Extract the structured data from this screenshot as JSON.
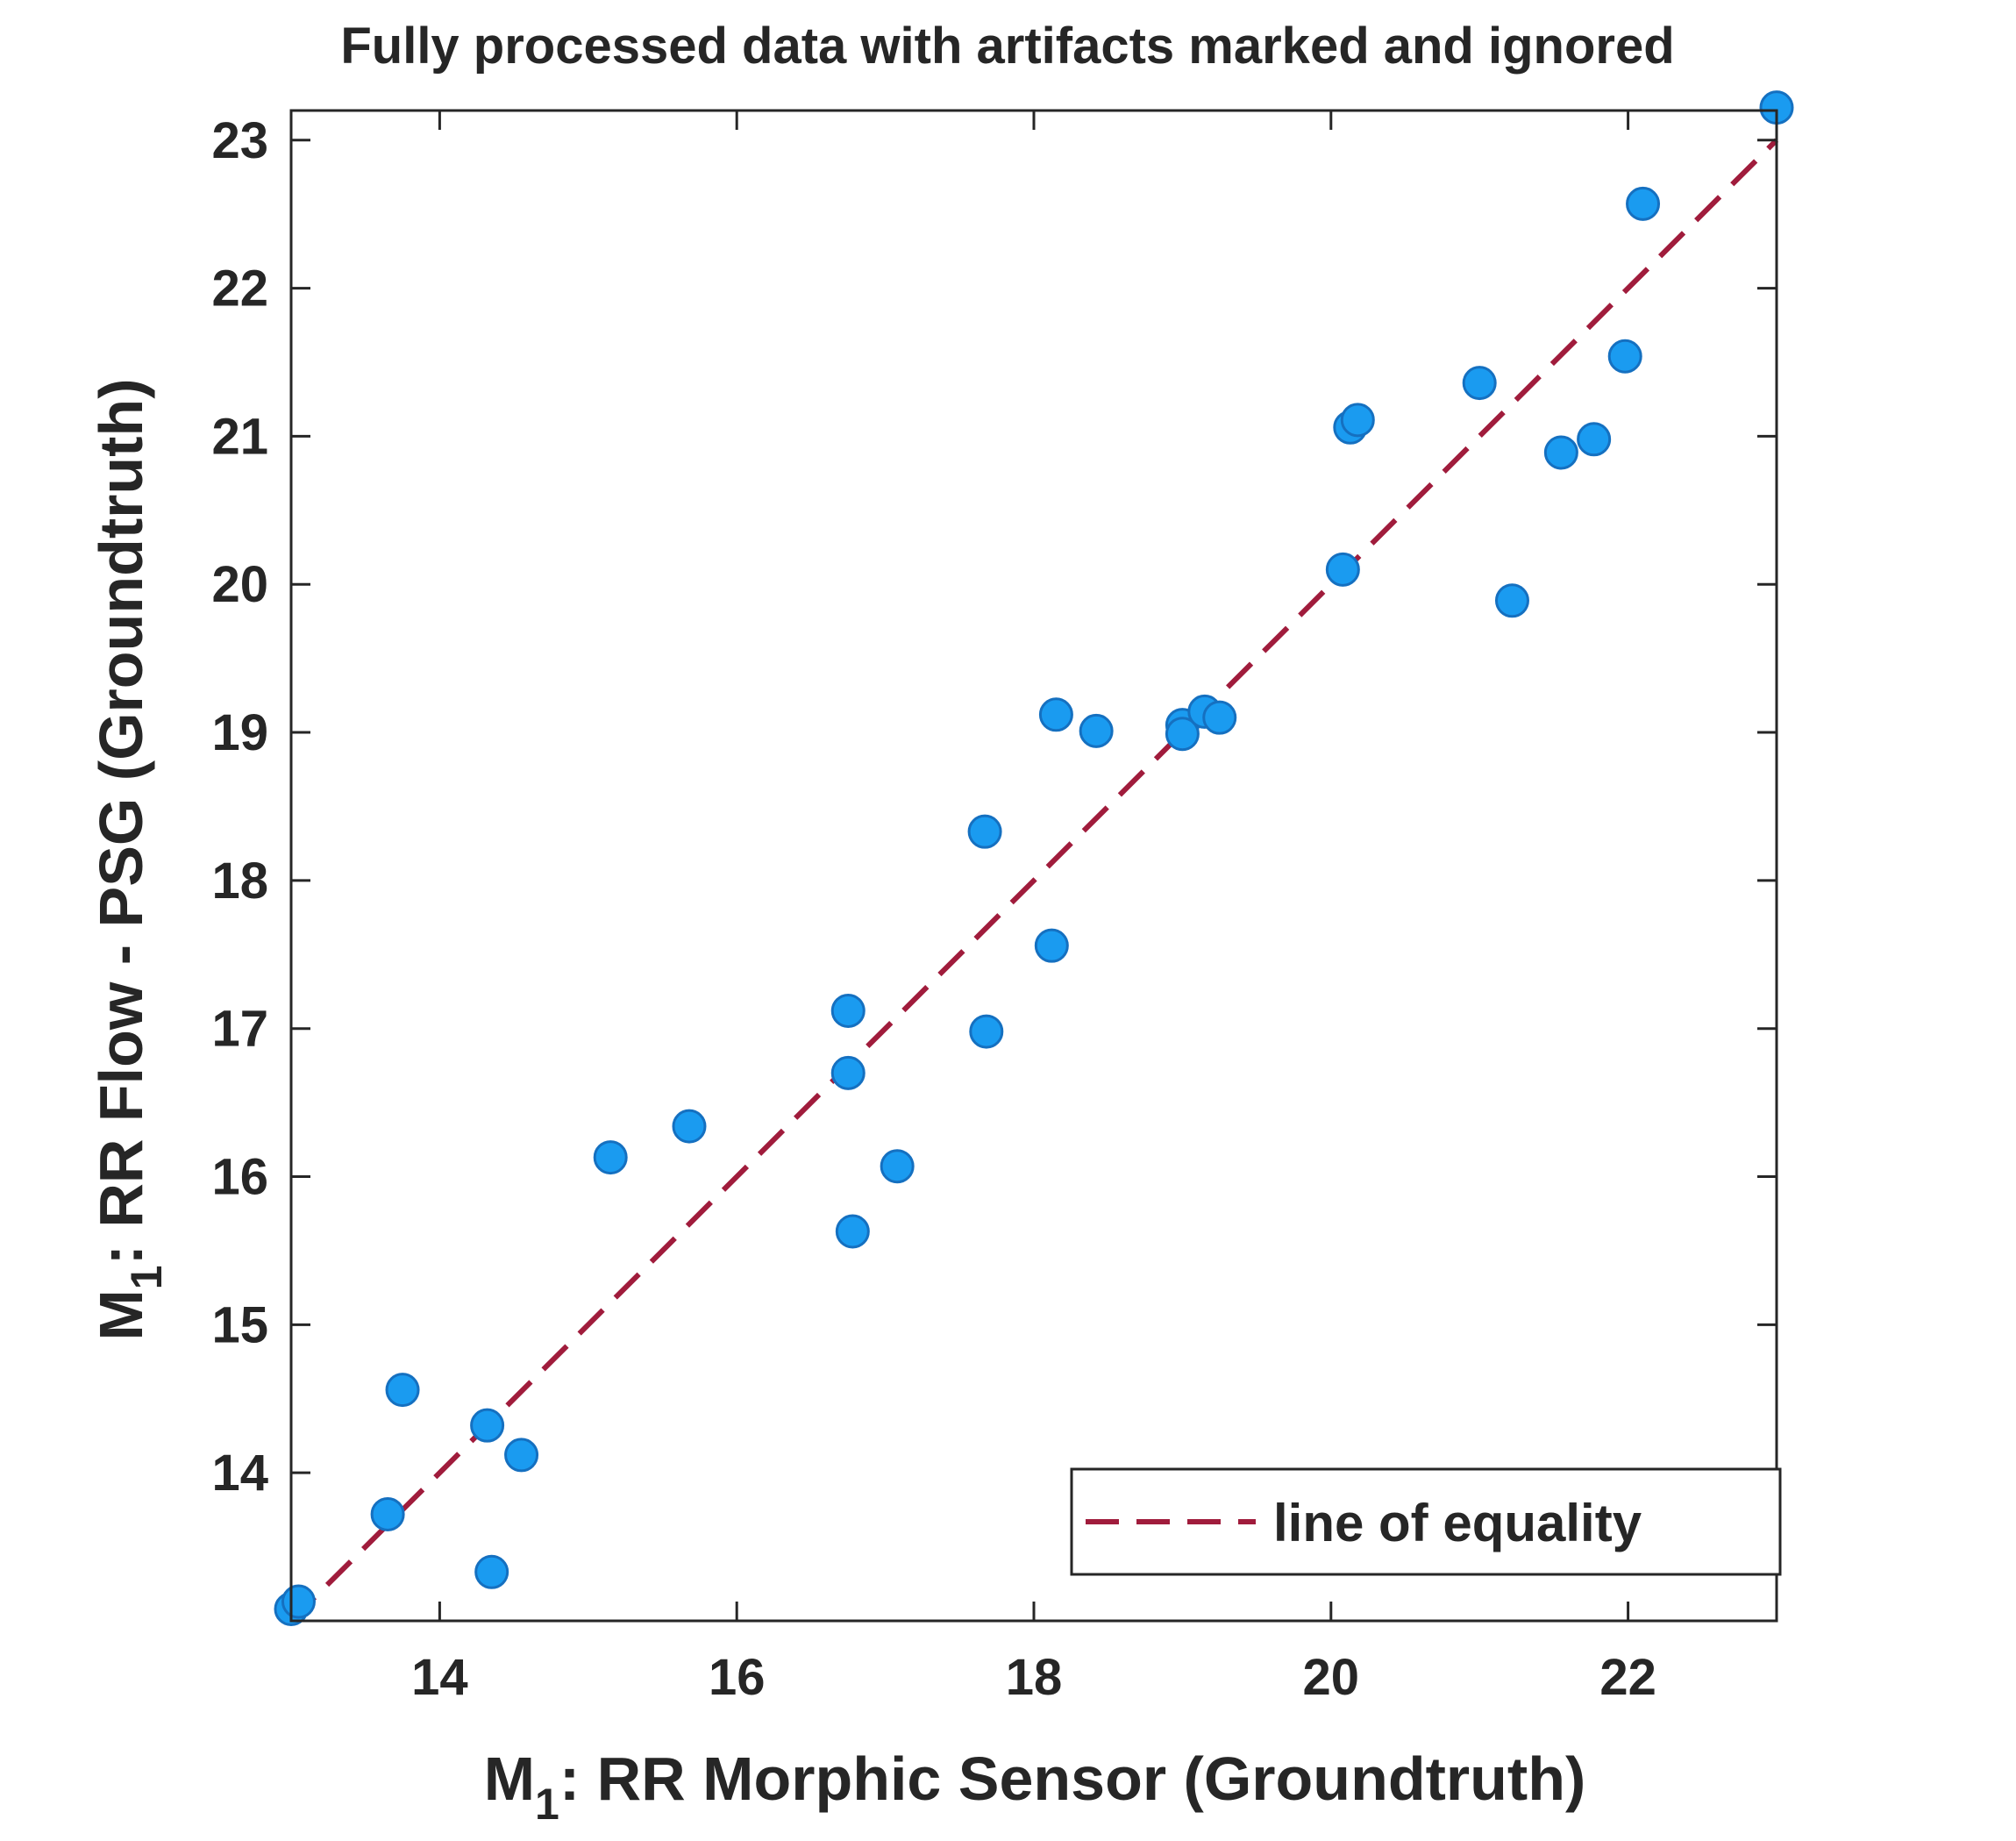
{
  "chart_data": {
    "type": "scatter",
    "title": "Fully processed data with artifacts marked and ignored",
    "xlabel": {
      "main": "M",
      "sub": "1",
      "rest": ": RR Morphic Sensor (Groundtruth)"
    },
    "ylabel": {
      "main": "M",
      "sub": "1",
      "rest": ": RR Flow - PSG (Groundtruth)"
    },
    "xlim": [
      13.0,
      23.0
    ],
    "ylim": [
      13.0,
      23.2
    ],
    "xticks": [
      14,
      16,
      18,
      20,
      22
    ],
    "yticks": [
      14,
      15,
      16,
      17,
      18,
      19,
      20,
      21,
      22,
      23
    ],
    "grid": false,
    "legend": {
      "label": "line of equality",
      "position": "bottom-right"
    },
    "colors": {
      "points": "#1a9bf0",
      "point_edge": "#1570c0",
      "line": "#a01c3c",
      "axis": "#262626"
    },
    "series": [
      {
        "name": "data",
        "points": [
          [
            13.0,
            13.08
          ],
          [
            13.05,
            13.13
          ],
          [
            13.65,
            13.72
          ],
          [
            13.75,
            14.56
          ],
          [
            14.32,
            14.32
          ],
          [
            14.35,
            13.33
          ],
          [
            14.55,
            14.12
          ],
          [
            15.15,
            16.13
          ],
          [
            15.68,
            16.34
          ],
          [
            16.75,
            17.12
          ],
          [
            16.75,
            16.7
          ],
          [
            16.78,
            15.63
          ],
          [
            17.08,
            16.07
          ],
          [
            17.67,
            18.33
          ],
          [
            17.68,
            16.98
          ],
          [
            18.12,
            17.56
          ],
          [
            18.15,
            19.12
          ],
          [
            18.42,
            19.01
          ],
          [
            19.0,
            19.05
          ],
          [
            19.0,
            18.99
          ],
          [
            19.15,
            19.14
          ],
          [
            19.25,
            19.1
          ],
          [
            20.08,
            20.1
          ],
          [
            20.13,
            21.06
          ],
          [
            20.18,
            21.11
          ],
          [
            21.0,
            21.36
          ],
          [
            21.22,
            19.89
          ],
          [
            21.55,
            20.89
          ],
          [
            21.77,
            20.98
          ],
          [
            21.98,
            21.54
          ],
          [
            22.1,
            22.57
          ],
          [
            23.0,
            23.22
          ]
        ]
      },
      {
        "name": "line of equality",
        "style": "dashed",
        "points": [
          [
            13.0,
            13.0
          ],
          [
            23.0,
            23.0
          ]
        ]
      }
    ]
  }
}
